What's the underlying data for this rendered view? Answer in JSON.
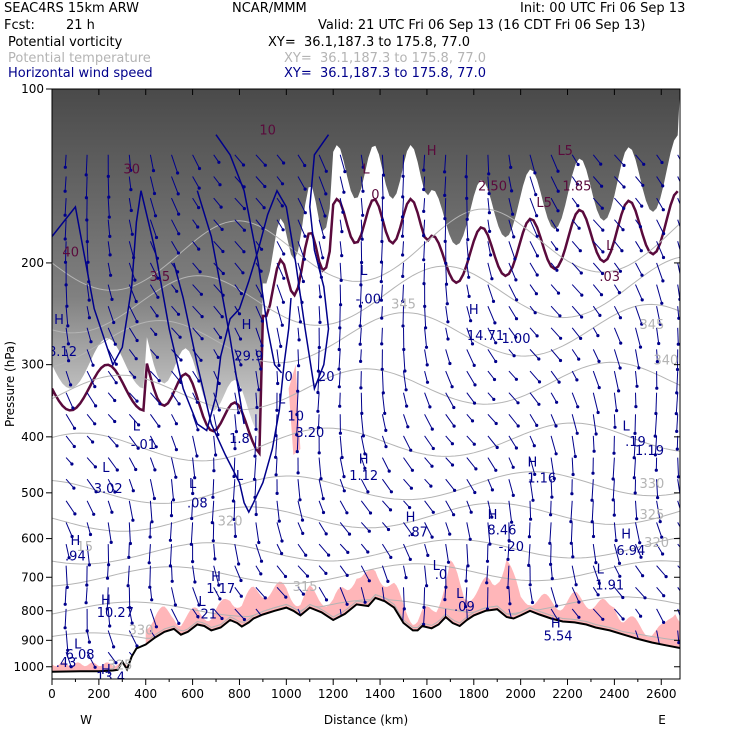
{
  "header": {
    "model": "SEAC4RS 15km ARW",
    "org": "NCAR/MMM",
    "init": "Init: 00 UTC Fri 06 Sep 13",
    "fcst_label": "Fcst:",
    "fcst_value": "21 h",
    "valid": "Valid: 21 UTC Fri 06 Sep 13 (16 CDT Fri 06 Sep 13)"
  },
  "fields": [
    {
      "name": "Potential vorticity",
      "xy": "XY=  36.1,187.3 to 175.8, 77.0",
      "color": "#000000"
    },
    {
      "name": "Potential temperature",
      "xy": "XY=  36.1,187.3 to 175.8, 77.0",
      "color": "#b4b4b4"
    },
    {
      "name": "Horizontal wind speed",
      "xy": "XY=  36.1,187.3 to 175.8, 77.0",
      "color": "#00008b"
    }
  ],
  "colors": {
    "pv_contour": "#5a0a3c",
    "wind_contour": "#00008b",
    "theta": "#b4b4b4",
    "shading": "#ffb6b9",
    "terrain": "#000000"
  },
  "chart_data": {
    "type": "heatmap",
    "xlabel": "Distance (km)",
    "ylabel": "Pressure (hPa)",
    "xlim": [
      0,
      2680
    ],
    "ylim": [
      1050,
      100
    ],
    "y_scale": "log",
    "x_ticks": [
      "0",
      "200",
      "400",
      "600",
      "800",
      "1000",
      "1200",
      "1400",
      "1600",
      "1800",
      "2000",
      "2200",
      "2400",
      "2600"
    ],
    "y_ticks": [
      "100",
      "200",
      "300",
      "400",
      "500",
      "600",
      "700",
      "800",
      "900",
      "1000"
    ],
    "x_end_labels": {
      "left": "W",
      "right": "E"
    },
    "terrain": [
      [
        0,
        1020
      ],
      [
        120,
        1018
      ],
      [
        200,
        1018
      ],
      [
        260,
        1015
      ],
      [
        280,
        1012
      ],
      [
        300,
        980
      ],
      [
        320,
        1010
      ],
      [
        340,
        960
      ],
      [
        360,
        930
      ],
      [
        400,
        915
      ],
      [
        440,
        890
      ],
      [
        480,
        870
      ],
      [
        520,
        860
      ],
      [
        550,
        880
      ],
      [
        580,
        870
      ],
      [
        620,
        845
      ],
      [
        650,
        850
      ],
      [
        680,
        865
      ],
      [
        720,
        855
      ],
      [
        760,
        830
      ],
      [
        790,
        840
      ],
      [
        810,
        852
      ],
      [
        840,
        838
      ],
      [
        860,
        825
      ],
      [
        900,
        812
      ],
      [
        950,
        800
      ],
      [
        1000,
        790
      ],
      [
        1030,
        800
      ],
      [
        1060,
        815
      ],
      [
        1100,
        790
      ],
      [
        1150,
        805
      ],
      [
        1200,
        830
      ],
      [
        1250,
        810
      ],
      [
        1300,
        780
      ],
      [
        1350,
        785
      ],
      [
        1380,
        760
      ],
      [
        1420,
        770
      ],
      [
        1460,
        790
      ],
      [
        1500,
        840
      ],
      [
        1540,
        865
      ],
      [
        1560,
        865
      ],
      [
        1580,
        850
      ],
      [
        1620,
        858
      ],
      [
        1650,
        845
      ],
      [
        1680,
        820
      ],
      [
        1710,
        840
      ],
      [
        1740,
        850
      ],
      [
        1770,
        830
      ],
      [
        1800,
        815
      ],
      [
        1850,
        800
      ],
      [
        1900,
        795
      ],
      [
        1940,
        820
      ],
      [
        1970,
        825
      ],
      [
        2000,
        815
      ],
      [
        2040,
        800
      ],
      [
        2080,
        812
      ],
      [
        2130,
        825
      ],
      [
        2180,
        835
      ],
      [
        2230,
        838
      ],
      [
        2280,
        845
      ],
      [
        2320,
        855
      ],
      [
        2380,
        865
      ],
      [
        2440,
        880
      ],
      [
        2500,
        895
      ],
      [
        2560,
        908
      ],
      [
        2620,
        918
      ],
      [
        2680,
        928
      ]
    ],
    "pv_labels": [
      {
        "x": 80,
        "p": 195,
        "text": "40"
      },
      {
        "x": 340,
        "p": 140,
        "text": "30"
      },
      {
        "x": 460,
        "p": 215,
        "text": "3.5"
      },
      {
        "x": 920,
        "p": 120,
        "text": "10"
      },
      {
        "x": 1340,
        "p": 140,
        "text": "L"
      },
      {
        "x": 1380,
        "p": 155,
        "text": "0"
      },
      {
        "x": 1620,
        "p": 130,
        "text": "H"
      },
      {
        "x": 1880,
        "p": 150,
        "text": "2.50"
      },
      {
        "x": 2100,
        "p": 160,
        "text": "L5"
      },
      {
        "x": 2190,
        "p": 130,
        "text": "L5"
      },
      {
        "x": 2240,
        "p": 150,
        "text": "1.85"
      },
      {
        "x": 2380,
        "p": 190,
        "text": "L"
      },
      {
        "x": 2380,
        "p": 215,
        "text": ".03"
      }
    ],
    "wind_labels": [
      {
        "x": 30,
        "p": 255,
        "text": "H"
      },
      {
        "x": 45,
        "p": 290,
        "text": "8.12"
      },
      {
        "x": 830,
        "p": 260,
        "text": "H"
      },
      {
        "x": 840,
        "p": 295,
        "text": "29.9"
      },
      {
        "x": 1170,
        "p": 320,
        "text": "20"
      },
      {
        "x": 980,
        "p": 350,
        "text": "L"
      },
      {
        "x": 1040,
        "p": 375,
        "text": "10"
      },
      {
        "x": 1330,
        "p": 210,
        "text": "L"
      },
      {
        "x": 1350,
        "p": 235,
        "text": "-.00"
      },
      {
        "x": 1800,
        "p": 245,
        "text": "H"
      },
      {
        "x": 1850,
        "p": 272,
        "text": "14.71"
      },
      {
        "x": 1980,
        "p": 275,
        "text": "1.00"
      },
      {
        "x": 360,
        "p": 390,
        "text": "L"
      },
      {
        "x": 390,
        "p": 420,
        "text": "-.01"
      },
      {
        "x": 230,
        "p": 460,
        "text": "L"
      },
      {
        "x": 240,
        "p": 500,
        "text": "3.02"
      },
      {
        "x": 600,
        "p": 490,
        "text": "L"
      },
      {
        "x": 620,
        "p": 530,
        "text": ".08"
      },
      {
        "x": 800,
        "p": 475,
        "text": "L"
      },
      {
        "x": 800,
        "p": 470,
        "text": ""
      },
      {
        "x": 1330,
        "p": 445,
        "text": "H"
      },
      {
        "x": 1330,
        "p": 475,
        "text": "1.12"
      },
      {
        "x": 2050,
        "p": 450,
        "text": "H"
      },
      {
        "x": 2090,
        "p": 480,
        "text": "1.16"
      },
      {
        "x": 2450,
        "p": 390,
        "text": "L"
      },
      {
        "x": 2490,
        "p": 415,
        "text": ".19"
      },
      {
        "x": 2550,
        "p": 430,
        "text": "1.19"
      },
      {
        "x": 1530,
        "p": 560,
        "text": "H"
      },
      {
        "x": 1560,
        "p": 595,
        "text": ".87"
      },
      {
        "x": 1880,
        "p": 555,
        "text": "H"
      },
      {
        "x": 1920,
        "p": 590,
        "text": "8.46"
      },
      {
        "x": 1960,
        "p": 630,
        "text": "-.20"
      },
      {
        "x": 2450,
        "p": 600,
        "text": "H"
      },
      {
        "x": 2470,
        "p": 640,
        "text": "6.94"
      },
      {
        "x": 100,
        "p": 615,
        "text": "H"
      },
      {
        "x": 100,
        "p": 655,
        "text": ".94"
      },
      {
        "x": 700,
        "p": 710,
        "text": "H"
      },
      {
        "x": 720,
        "p": 745,
        "text": "1.17"
      },
      {
        "x": 1640,
        "p": 680,
        "text": "L"
      },
      {
        "x": 1660,
        "p": 705,
        "text": ".0"
      },
      {
        "x": 2340,
        "p": 690,
        "text": "L"
      },
      {
        "x": 2380,
        "p": 735,
        "text": "1.91"
      },
      {
        "x": 230,
        "p": 780,
        "text": "H"
      },
      {
        "x": 270,
        "p": 820,
        "text": "10.27"
      },
      {
        "x": 640,
        "p": 785,
        "text": "L"
      },
      {
        "x": 660,
        "p": 825,
        "text": ".21"
      },
      {
        "x": 1740,
        "p": 760,
        "text": "L"
      },
      {
        "x": 1760,
        "p": 800,
        "text": ".09"
      },
      {
        "x": 2150,
        "p": 855,
        "text": "H"
      },
      {
        "x": 2160,
        "p": 900,
        "text": "5.54"
      },
      {
        "x": 110,
        "p": 930,
        "text": "L"
      },
      {
        "x": 120,
        "p": 970,
        "text": "6.08"
      },
      {
        "x": 60,
        "p": 1000,
        "text": ".43"
      },
      {
        "x": 230,
        "p": 1030,
        "text": "H"
      },
      {
        "x": 250,
        "p": 1060,
        "text": "13.4"
      },
      {
        "x": 1100,
        "p": 400,
        "text": "3.20"
      },
      {
        "x": 1010,
        "p": 320,
        "text": "0"
      },
      {
        "x": 800,
        "p": 410,
        "text": "1.8"
      }
    ],
    "theta_labels": [
      {
        "x": 2620,
        "p": 300,
        "text": "340"
      },
      {
        "x": 2560,
        "p": 260,
        "text": "345"
      },
      {
        "x": 2560,
        "p": 490,
        "text": "330"
      },
      {
        "x": 2560,
        "p": 555,
        "text": "325"
      },
      {
        "x": 2580,
        "p": 620,
        "text": "320"
      },
      {
        "x": 760,
        "p": 570,
        "text": "320"
      },
      {
        "x": 1500,
        "p": 240,
        "text": "345"
      },
      {
        "x": 380,
        "p": 880,
        "text": "330"
      },
      {
        "x": 290,
        "p": 1010,
        "text": "325"
      },
      {
        "x": 140,
        "p": 630,
        "text": "15"
      },
      {
        "x": 1080,
        "p": 740,
        "text": "315"
      }
    ]
  }
}
